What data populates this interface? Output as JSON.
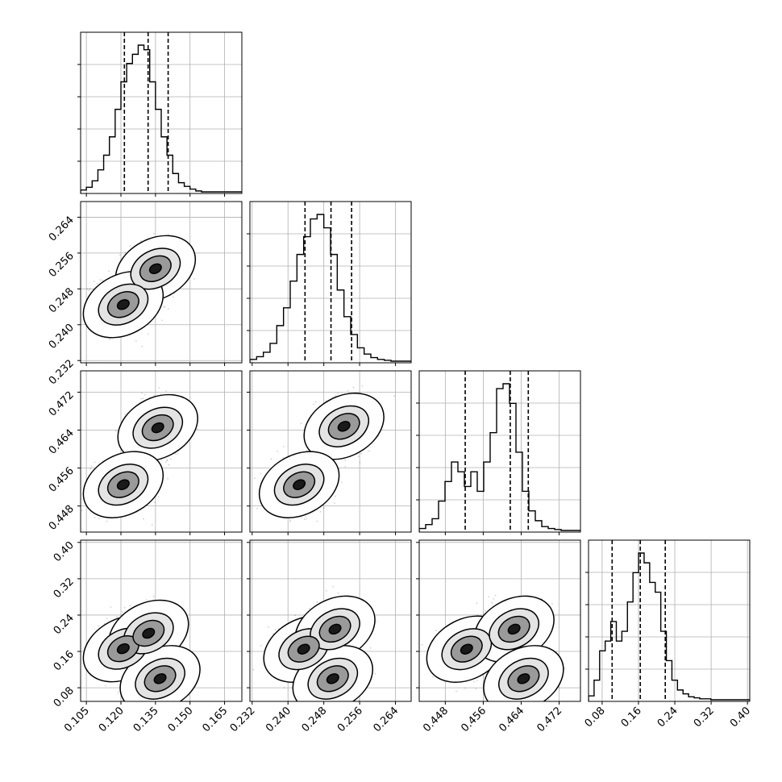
{
  "chart_data": {
    "type": "corner",
    "parameters": [
      {
        "range": [
          0.1025,
          0.1725
        ],
        "ticks": [
          "0.105",
          "0.120",
          "0.135",
          "0.150",
          "0.165"
        ],
        "tick_values": [
          0.105,
          0.12,
          0.135,
          0.15,
          0.165
        ],
        "quantiles": [
          0.1215,
          0.1318,
          0.1405
        ]
      },
      {
        "range": [
          0.2315,
          0.2675
        ],
        "ticks": [
          "0.232",
          "0.240",
          "0.248",
          "0.256",
          "0.264"
        ],
        "tick_values": [
          0.232,
          0.24,
          0.248,
          0.256,
          0.264
        ],
        "quantiles": [
          0.2438,
          0.2496,
          0.2542
        ]
      },
      {
        "range": [
          0.4425,
          0.4765
        ],
        "ticks": [
          "0.448",
          "0.456",
          "0.464",
          "0.472"
        ],
        "tick_values": [
          0.448,
          0.456,
          0.464,
          0.472
        ],
        "quantiles": [
          0.4522,
          0.4617,
          0.4655
        ]
      },
      {
        "range": [
          0.05,
          0.405
        ],
        "ticks": [
          "0.08",
          "0.16",
          "0.24",
          "0.32",
          "0.40"
        ],
        "tick_values": [
          0.08,
          0.16,
          0.24,
          0.32,
          0.4
        ],
        "quantiles": [
          0.102,
          0.164,
          0.219
        ]
      }
    ],
    "histograms": [
      {
        "bins": [
          0.1025,
          0.1725
        ],
        "counts": [
          2,
          5,
          12,
          24,
          40,
          60,
          90,
          120,
          140,
          150,
          160,
          155,
          120,
          90,
          60,
          40,
          20,
          10,
          6,
          3,
          1,
          0,
          0,
          0,
          0,
          0,
          0,
          0
        ]
      },
      {
        "bins": [
          0.2315,
          0.2675
        ],
        "counts": [
          2,
          5,
          10,
          20,
          40,
          60,
          90,
          120,
          140,
          160,
          165,
          150,
          120,
          80,
          50,
          30,
          15,
          8,
          4,
          2,
          1,
          0,
          0,
          0
        ]
      },
      {
        "bins": [
          0.4425,
          0.4765
        ],
        "counts": [
          2,
          6,
          12,
          30,
          50,
          70,
          60,
          45,
          60,
          40,
          70,
          100,
          145,
          150,
          130,
          80,
          40,
          20,
          10,
          4,
          2,
          1,
          0,
          0,
          0
        ]
      },
      {
        "bins": [
          0.05,
          0.405
        ],
        "counts": [
          4,
          20,
          50,
          60,
          80,
          60,
          70,
          100,
          130,
          150,
          140,
          120,
          110,
          70,
          40,
          20,
          10,
          6,
          3,
          2,
          1,
          1,
          0,
          0,
          0,
          0,
          0,
          0,
          0
        ]
      }
    ],
    "contour_modes": {
      "1_0": [
        {
          "x": 0.135,
          "y": 0.2525
        },
        {
          "x": 0.121,
          "y": 0.2445
        }
      ],
      "2_0": [
        {
          "x": 0.136,
          "y": 0.4645
        },
        {
          "x": 0.121,
          "y": 0.4525
        }
      ],
      "2_1": [
        {
          "x": 0.2525,
          "y": 0.4648
        },
        {
          "x": 0.2425,
          "y": 0.4525
        }
      ],
      "3_0": [
        {
          "x": 0.121,
          "y": 0.166
        },
        {
          "x": 0.132,
          "y": 0.2
        },
        {
          "x": 0.137,
          "y": 0.1
        }
      ],
      "3_1": [
        {
          "x": 0.2435,
          "y": 0.165
        },
        {
          "x": 0.2505,
          "y": 0.209
        },
        {
          "x": 0.25,
          "y": 0.1
        }
      ],
      "3_2": [
        {
          "x": 0.4525,
          "y": 0.165
        },
        {
          "x": 0.4625,
          "y": 0.209
        },
        {
          "x": 0.4645,
          "y": 0.1
        }
      ]
    },
    "xlabel": "",
    "ylabel": "",
    "grid": true
  }
}
